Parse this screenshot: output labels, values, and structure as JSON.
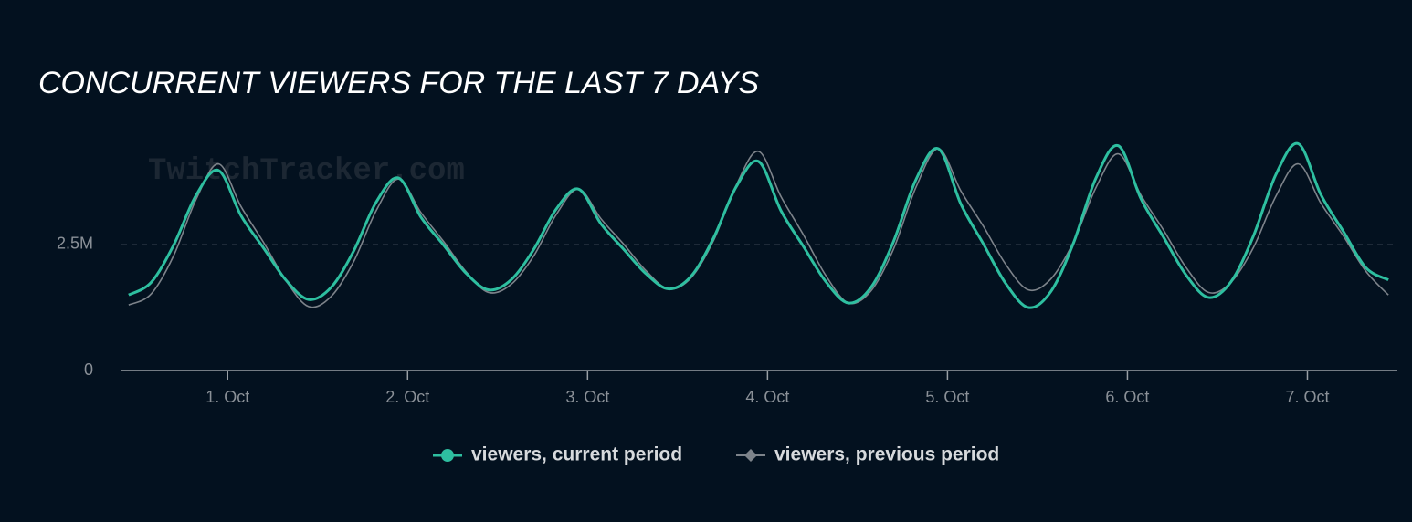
{
  "chart_data": {
    "type": "line",
    "title": "CONCURRENT VIEWERS FOR THE LAST 7 DAYS",
    "watermark": "TwitchTracker.com",
    "x": [
      0.45,
      0.575,
      0.7,
      0.825,
      0.95,
      1.075,
      1.2,
      1.325,
      1.45,
      1.575,
      1.7,
      1.825,
      1.95,
      2.075,
      2.2,
      2.325,
      2.45,
      2.575,
      2.7,
      2.825,
      2.95,
      3.075,
      3.2,
      3.325,
      3.45,
      3.575,
      3.7,
      3.825,
      3.95,
      4.075,
      4.2,
      4.325,
      4.45,
      4.575,
      4.7,
      4.825,
      4.95,
      5.075,
      5.2,
      5.325,
      5.45,
      5.575,
      5.7,
      5.825,
      5.95,
      6.075,
      6.2,
      6.325,
      6.45,
      6.575,
      6.7,
      6.825,
      6.95,
      7.075,
      7.2,
      7.325,
      7.45
    ],
    "series": [
      {
        "name": "viewers, current period",
        "color": "#2ebfa0",
        "marker": "circle",
        "values": [
          1500000,
          1750000,
          2490000,
          3480000,
          3970000,
          3070000,
          2430000,
          1790000,
          1410000,
          1650000,
          2370000,
          3340000,
          3820000,
          3040000,
          2490000,
          1930000,
          1600000,
          1800000,
          2400000,
          3200000,
          3600000,
          2910000,
          2410000,
          1920000,
          1620000,
          1870000,
          2630000,
          3640000,
          4150000,
          3170000,
          2460000,
          1760000,
          1340000,
          1650000,
          2560000,
          3790000,
          4400000,
          3300000,
          2510000,
          1720000,
          1250000,
          1570000,
          2530000,
          3820000,
          4460000,
          3410000,
          2650000,
          1900000,
          1450000,
          1760000,
          2670000,
          3890000,
          4500000,
          3490000,
          2760000,
          2040000,
          1800000
        ]
      },
      {
        "name": "viewers, previous period",
        "color": "#7d838a",
        "marker": "diamond",
        "values": [
          1300000,
          1520000,
          2280000,
          3400000,
          4100000,
          3250000,
          2540000,
          1780000,
          1270000,
          1470000,
          2160000,
          3170000,
          3800000,
          3130000,
          2560000,
          1960000,
          1550000,
          1710000,
          2270000,
          3090000,
          3600000,
          3010000,
          2510000,
          1980000,
          1620000,
          1840000,
          2580000,
          3670000,
          4350000,
          3450000,
          2690000,
          1880000,
          1340000,
          1580000,
          2410000,
          3640000,
          4400000,
          3560000,
          2860000,
          2100000,
          1600000,
          1820000,
          2550000,
          3630000,
          4300000,
          3480000,
          2790000,
          2050000,
          1550000,
          1750000,
          2440000,
          3460000,
          4100000,
          3320000,
          2670000,
          1970000,
          1500000
        ]
      }
    ],
    "xlim": [
      0.41,
      7.5
    ],
    "xticks": [
      {
        "value": 1,
        "label": "1. Oct"
      },
      {
        "value": 2,
        "label": "2. Oct"
      },
      {
        "value": 3,
        "label": "3. Oct"
      },
      {
        "value": 4,
        "label": "4. Oct"
      },
      {
        "value": 5,
        "label": "5. Oct"
      },
      {
        "value": 6,
        "label": "6. Oct"
      },
      {
        "value": 7,
        "label": "7. Oct"
      }
    ],
    "ylim": [
      0,
      4800000
    ],
    "yticks": [
      0,
      {
        "value": 2500000,
        "label": "2.5M"
      }
    ],
    "grid": true,
    "legend": "bottom"
  }
}
